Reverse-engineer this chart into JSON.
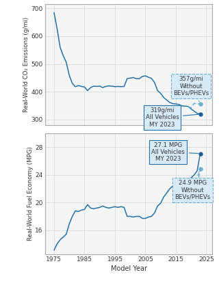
{
  "co2_years": [
    1975,
    1976,
    1977,
    1978,
    1979,
    1980,
    1981,
    1982,
    1983,
    1984,
    1985,
    1986,
    1987,
    1988,
    1989,
    1990,
    1991,
    1992,
    1993,
    1994,
    1995,
    1996,
    1997,
    1998,
    1999,
    2000,
    2001,
    2002,
    2003,
    2004,
    2005,
    2006,
    2007,
    2008,
    2009,
    2010,
    2011,
    2012,
    2013,
    2014,
    2015,
    2016,
    2017,
    2018,
    2019,
    2020,
    2021,
    2022,
    2023
  ],
  "co2_all": [
    685,
    627,
    560,
    530,
    506,
    459,
    430,
    418,
    422,
    419,
    417,
    404,
    415,
    420,
    419,
    420,
    415,
    419,
    421,
    420,
    418,
    419,
    418,
    419,
    447,
    449,
    451,
    447,
    447,
    455,
    457,
    452,
    448,
    433,
    404,
    394,
    379,
    370,
    361,
    357,
    356,
    354,
    349,
    348,
    347,
    338,
    330,
    322,
    319
  ],
  "co2_no_bev": [
    685,
    627,
    560,
    530,
    506,
    459,
    430,
    418,
    422,
    419,
    417,
    404,
    415,
    420,
    419,
    420,
    415,
    419,
    421,
    420,
    418,
    419,
    418,
    419,
    447,
    449,
    451,
    447,
    447,
    455,
    457,
    452,
    448,
    433,
    404,
    394,
    379,
    370,
    361,
    357,
    356,
    354,
    349,
    348,
    347,
    342,
    358,
    356,
    357
  ],
  "co2_split_idx": 44,
  "mpg_years": [
    1975,
    1976,
    1977,
    1978,
    1979,
    1980,
    1981,
    1982,
    1983,
    1984,
    1985,
    1986,
    1987,
    1988,
    1989,
    1990,
    1991,
    1992,
    1993,
    1994,
    1995,
    1996,
    1997,
    1998,
    1999,
    2000,
    2001,
    2002,
    2003,
    2004,
    2005,
    2006,
    2007,
    2008,
    2009,
    2010,
    2011,
    2012,
    2013,
    2014,
    2015,
    2016,
    2017,
    2018,
    2019,
    2020,
    2021,
    2022,
    2023
  ],
  "mpg_all": [
    13.1,
    14.0,
    14.6,
    15.0,
    15.4,
    16.9,
    18.0,
    18.8,
    18.7,
    18.9,
    19.0,
    19.7,
    19.2,
    19.1,
    19.2,
    19.3,
    19.5,
    19.3,
    19.2,
    19.3,
    19.4,
    19.3,
    19.4,
    19.3,
    18.0,
    18.0,
    17.9,
    18.0,
    18.0,
    17.7,
    17.7,
    17.9,
    18.0,
    18.5,
    19.5,
    19.9,
    20.8,
    21.4,
    22.0,
    22.4,
    22.5,
    22.6,
    22.9,
    22.9,
    23.0,
    23.6,
    24.0,
    24.6,
    27.1
  ],
  "mpg_no_bev": [
    13.1,
    14.0,
    14.6,
    15.0,
    15.4,
    16.9,
    18.0,
    18.8,
    18.7,
    18.9,
    19.0,
    19.7,
    19.2,
    19.1,
    19.2,
    19.3,
    19.5,
    19.3,
    19.2,
    19.3,
    19.4,
    19.3,
    19.4,
    19.3,
    18.0,
    18.0,
    17.9,
    18.0,
    18.0,
    17.7,
    17.7,
    17.9,
    18.0,
    18.5,
    19.5,
    19.9,
    20.8,
    21.4,
    22.0,
    22.4,
    22.5,
    22.6,
    22.9,
    22.9,
    23.0,
    23.3,
    22.1,
    22.3,
    24.9
  ],
  "mpg_split_idx": 44,
  "line_color": "#2471a8",
  "dashed_color": "#6aaed4",
  "dot_color_all": "#1a5d96",
  "dot_color_nobev": "#6aaed4",
  "box_color_solid": "#d6eaf8",
  "box_color_dashed": "#d6eaf8",
  "bg_color": "#ffffff",
  "plot_bg": "#f5f5f5",
  "grid_color": "#dddddd",
  "co2_ylabel": "Real-World CO₂ Emissions (g/mi)",
  "mpg_ylabel": "Real-World Fuel Economy (MPG)",
  "xlabel": "Model Year",
  "co2_ylim": [
    280,
    715
  ],
  "co2_yticks": [
    300,
    400,
    500,
    600,
    700
  ],
  "mpg_ylim": [
    12.5,
    30
  ],
  "mpg_yticks": [
    16,
    20,
    24,
    28
  ],
  "xlim": [
    1972,
    2027
  ],
  "xticks": [
    1975,
    1985,
    1995,
    2005,
    2015,
    2025
  ]
}
